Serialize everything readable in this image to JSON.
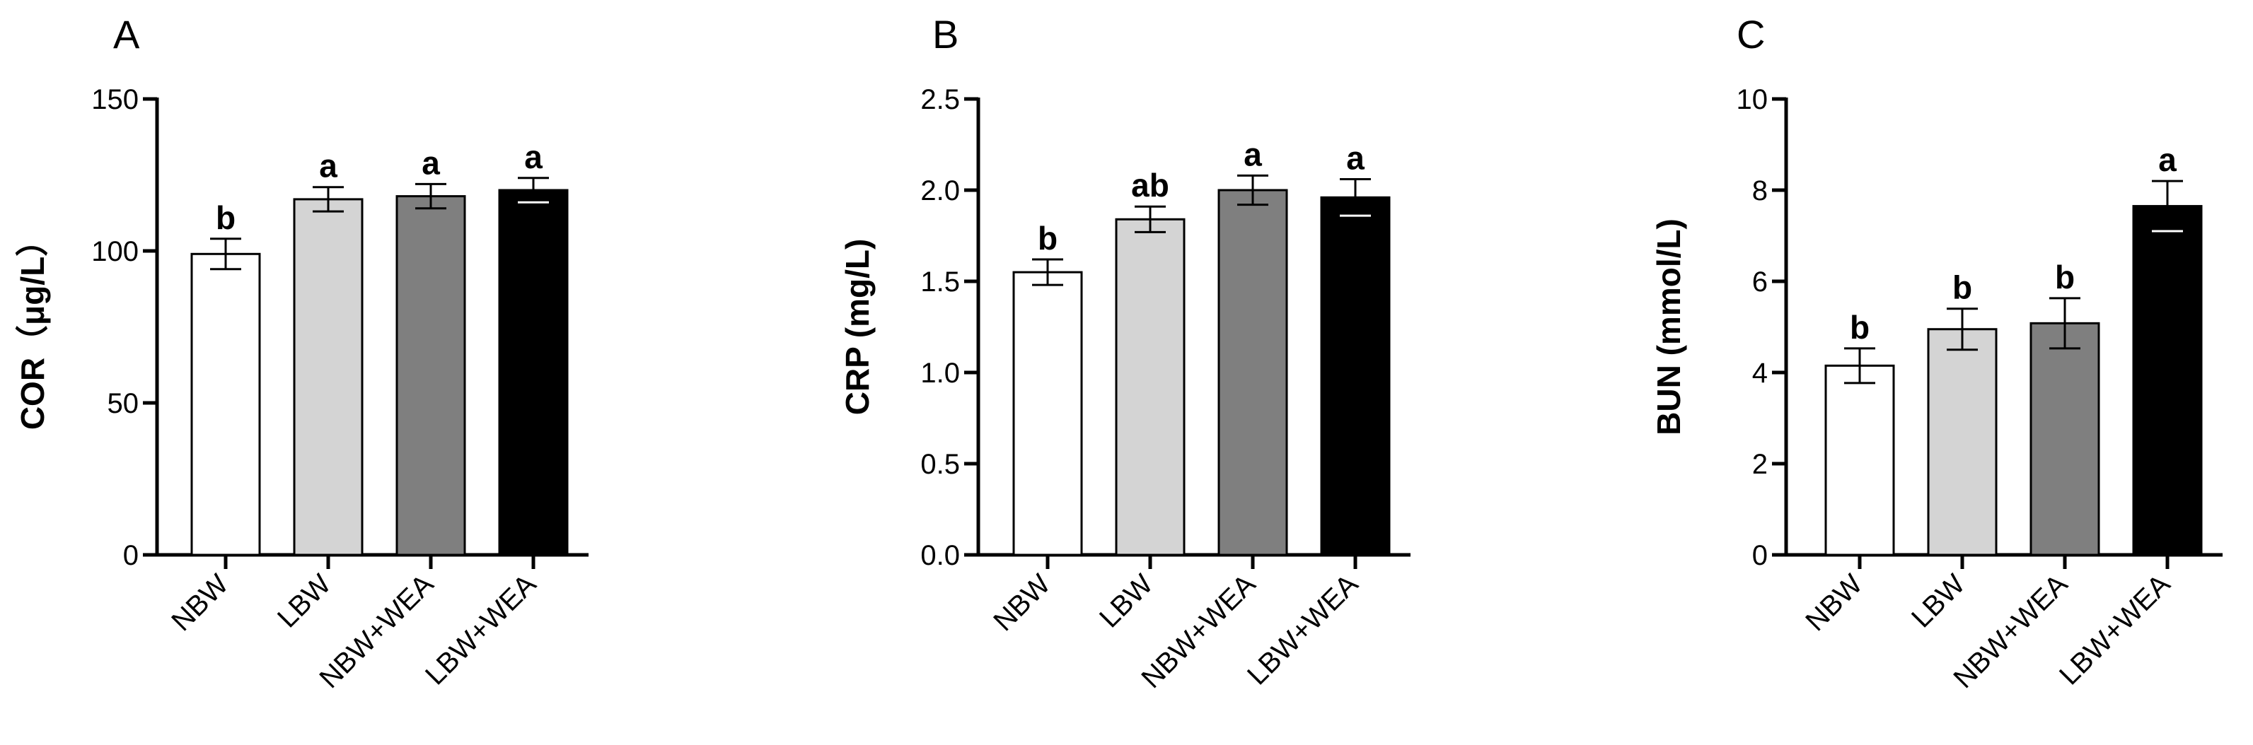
{
  "chart_data": [
    {
      "type": "bar",
      "panel": "A",
      "ylabel": "COR（μg/L）",
      "ylim": [
        0,
        150
      ],
      "yticks": [
        0,
        50,
        100,
        150
      ],
      "categories": [
        "NBW",
        "LBW",
        "NBW+WEA",
        "LBW+WEA"
      ],
      "values": [
        99,
        117,
        118,
        120
      ],
      "errors": [
        5,
        4,
        4,
        4
      ],
      "significance": [
        "b",
        "a",
        "a",
        "a"
      ],
      "colors": [
        "#ffffff",
        "#d4d4d4",
        "#7f7f7f",
        "#000000"
      ]
    },
    {
      "type": "bar",
      "panel": "B",
      "ylabel": "CRP (mg/L)",
      "ylim": [
        0,
        2.5
      ],
      "yticks": [
        "0.0",
        "0.5",
        "1.0",
        "1.5",
        "2.0",
        "2.5"
      ],
      "categories": [
        "NBW",
        "LBW",
        "NBW+WEA",
        "LBW+WEA"
      ],
      "values": [
        1.55,
        1.84,
        2.0,
        1.96
      ],
      "errors": [
        0.07,
        0.07,
        0.08,
        0.1
      ],
      "significance": [
        "b",
        "ab",
        "a",
        "a"
      ],
      "colors": [
        "#ffffff",
        "#d4d4d4",
        "#7f7f7f",
        "#000000"
      ]
    },
    {
      "type": "bar",
      "panel": "C",
      "ylabel": "BUN (mmol/L)",
      "ylim": [
        0,
        10
      ],
      "yticks": [
        0,
        2,
        4,
        6,
        8,
        10
      ],
      "categories": [
        "NBW",
        "LBW",
        "NBW+WEA",
        "LBW+WEA"
      ],
      "values": [
        4.15,
        4.95,
        5.08,
        7.65
      ],
      "errors": [
        0.38,
        0.45,
        0.55,
        0.55
      ],
      "significance": [
        "b",
        "b",
        "b",
        "a"
      ],
      "colors": [
        "#ffffff",
        "#d4d4d4",
        "#7f7f7f",
        "#000000"
      ]
    }
  ]
}
